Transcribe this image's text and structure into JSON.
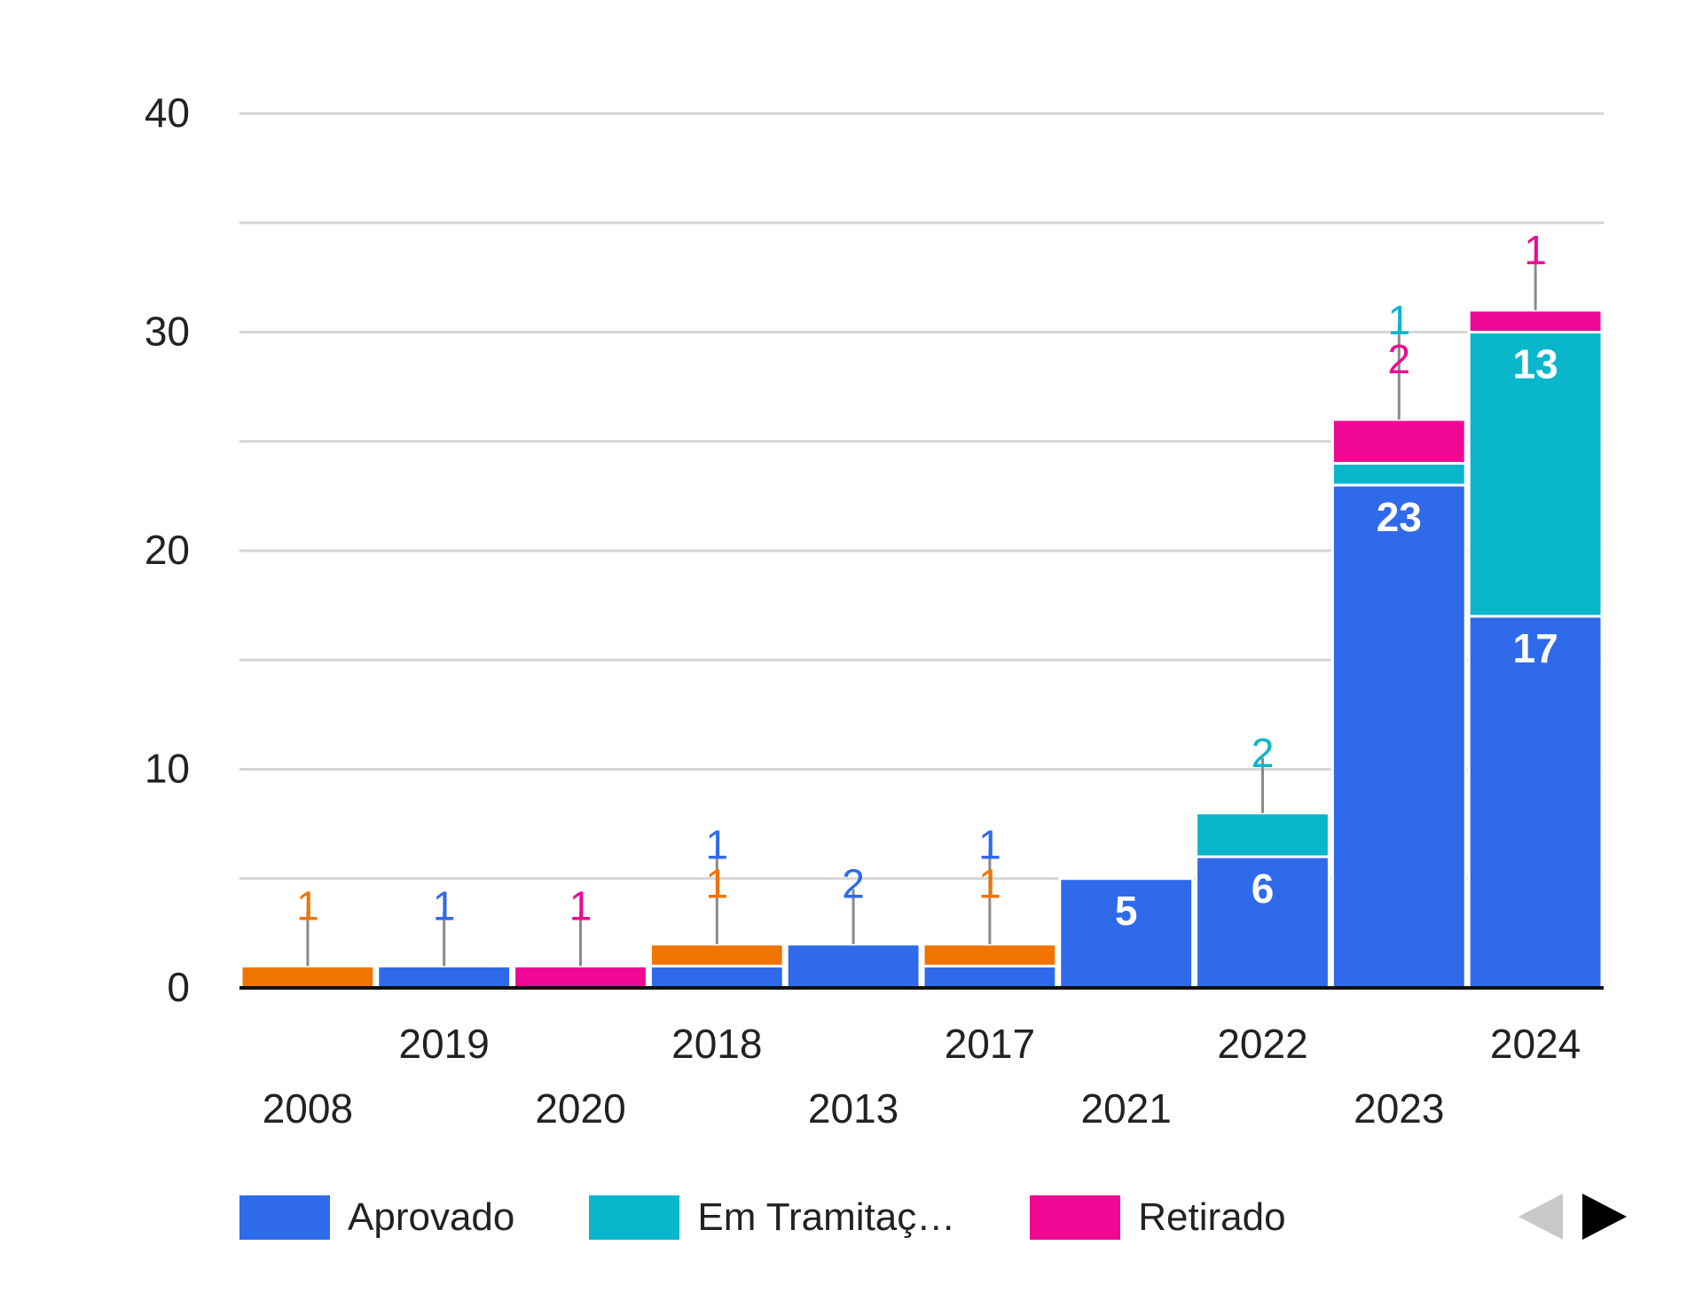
{
  "colors": {
    "aprovado": "#2f6aea",
    "em_tramitacao": "#0ab6cc",
    "retirado": "#ee0894",
    "other": "#f07400",
    "grid": "#d6d6d6",
    "axis": "#111111",
    "leader": "#8a8a8a"
  },
  "chart_data": {
    "type": "bar",
    "stacked": true,
    "categories": [
      "2008",
      "2019",
      "2020",
      "2018",
      "2013",
      "2017",
      "2021",
      "2022",
      "2023",
      "2024"
    ],
    "series": [
      {
        "name": "Aprovado",
        "color_key": "aprovado",
        "values": [
          0,
          1,
          0,
          1,
          2,
          1,
          5,
          6,
          23,
          17
        ]
      },
      {
        "name": "Em Tramitação",
        "color_key": "em_tramitacao",
        "values": [
          0,
          0,
          0,
          0,
          0,
          0,
          0,
          2,
          1,
          13
        ]
      },
      {
        "name": "Retirado",
        "color_key": "retirado",
        "values": [
          0,
          0,
          1,
          0,
          0,
          0,
          0,
          0,
          2,
          1
        ]
      },
      {
        "name": "",
        "color_key": "other",
        "values": [
          1,
          0,
          0,
          1,
          0,
          1,
          0,
          0,
          0,
          0
        ]
      }
    ],
    "yticks": [
      0,
      10,
      20,
      30,
      40
    ],
    "ylim": [
      0,
      40
    ],
    "grid": true,
    "title": "",
    "xlabel": "",
    "ylabel": "",
    "legend_position": "bottom",
    "legend": [
      {
        "label": "Aprovado",
        "color_key": "aprovado"
      },
      {
        "label": "Em Tramitaç…",
        "color_key": "em_tramitacao"
      },
      {
        "label": "Retirado",
        "color_key": "retirado"
      }
    ]
  },
  "legend_nav": {
    "prev_icon": "triangle-left-icon",
    "next_icon": "triangle-right-icon"
  }
}
